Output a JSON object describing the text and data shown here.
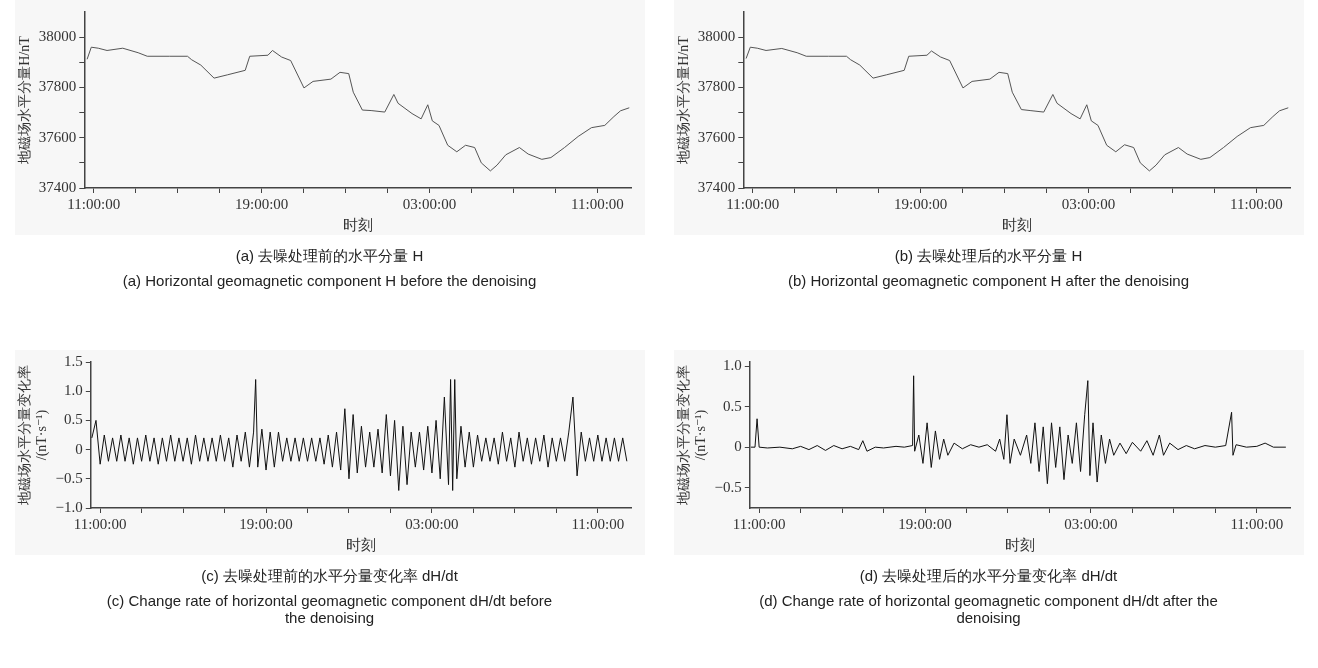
{
  "chart_data": [
    {
      "type": "line",
      "title": "(a) 去噪处理前的水平分量 H",
      "subtitle": "(a) Horizontal geomagnetic component H before the denoising",
      "xlabel": "时刻",
      "ylabel": "地磁场水平分量H/nT",
      "x": [
        "--01-01T10:41",
        "--01-01T10:53",
        "--01-01T11:13",
        "--01-01T11:38",
        "--01-01T12:23",
        "--01-01T13:07",
        "--01-01T13:33",
        "--01-01T14:37",
        "--01-01T15:28",
        "--01-01T15:40",
        "--01-01T16:06",
        "--01-01T16:44",
        "--01-01T17:22",
        "--01-01T18:13",
        "--01-01T18:26",
        "--01-01T19:18",
        "--01-01T19:31",
        "--01-01T19:57",
        "--01-01T20:23",
        "--01-01T21:01",
        "--01-01T21:27",
        "--01-01T22:18",
        "--01-01T22:44",
        "--01-01T23:09",
        "--01-01T23:22",
        "--01-01T23:48",
        "--01-02T00:13",
        "--01-02T00:52",
        "--01-02T01:18",
        "--01-02T01:30",
        "--01-02T02:10",
        "--01-02T02:36",
        "--01-02T02:55",
        "--01-02T03:08",
        "--01-02T03:27",
        "--01-02T03:52",
        "--01-02T04:18",
        "--01-02T04:43",
        "--01-02T05:09",
        "--01-02T05:28",
        "--01-02T05:54",
        "--01-02T06:13",
        "--01-02T06:38",
        "--01-02T07:17",
        "--01-02T07:42",
        "--01-02T08:21",
        "--01-02T08:47",
        "--01-02T09:26",
        "--01-02T10:05",
        "--01-02T10:43",
        "--01-02T11:21",
        "--01-02T11:47",
        "--01-02T12:06",
        "--01-02T12:31"
      ],
      "series": [
        {
          "color": "#555555",
          "values": [
            37912,
            37960,
            37956,
            37947,
            37956,
            37938,
            37924,
            37924,
            37924,
            37910,
            37889,
            37837,
            37850,
            37868,
            37924,
            37928,
            37947,
            37921,
            37907,
            37798,
            37824,
            37833,
            37860,
            37855,
            37781,
            37710,
            37708,
            37702,
            37772,
            37737,
            37696,
            37675,
            37731,
            37667,
            37649,
            37570,
            37544,
            37570,
            37561,
            37500,
            37468,
            37491,
            37532,
            37561,
            37535,
            37514,
            37521,
            37561,
            37605,
            37640,
            37649,
            37684,
            37707,
            37719
          ]
        }
      ],
      "xlim": [
        "--01-01T10:33",
        "--01-02T12:36"
      ],
      "ylim": [
        37400,
        38100
      ],
      "xticks": [
        {
          "value": "--01-01T11:00",
          "label": "11:00:00"
        },
        {
          "value": "--01-01T13:00",
          "label": null
        },
        {
          "value": "--01-01T15:00",
          "label": null
        },
        {
          "value": "--01-01T17:00",
          "label": null
        },
        {
          "value": "--01-01T19:00",
          "label": "19:00:00"
        },
        {
          "value": "--01-01T21:00",
          "label": null
        },
        {
          "value": "--01-01T23:00",
          "label": null
        },
        {
          "value": "--01-02T01:00",
          "label": null
        },
        {
          "value": "--01-02T03:00",
          "label": "03:00:00"
        },
        {
          "value": "--01-02T05:00",
          "label": null
        },
        {
          "value": "--01-02T07:00",
          "label": null
        },
        {
          "value": "--01-02T09:00",
          "label": null
        },
        {
          "value": "--01-02T11:00",
          "label": "11:00:00"
        }
      ],
      "yticks": [
        37400,
        {
          "value": 37500,
          "label": null
        },
        37600,
        {
          "value": 37700,
          "label": null
        },
        37800,
        {
          "value": 37900,
          "label": null
        },
        38000
      ]
    },
    {
      "type": "line",
      "title": "(b) 去噪处理后的水平分量 H",
      "subtitle": "(b) Horizontal geomagnetic component H after the denoising",
      "xlabel": "时刻",
      "ylabel": "地磁场水平分量H/nT",
      "x": [
        "--01-01T10:41",
        "--01-01T10:53",
        "--01-01T11:13",
        "--01-01T11:38",
        "--01-01T12:23",
        "--01-01T13:07",
        "--01-01T13:33",
        "--01-01T14:37",
        "--01-01T15:28",
        "--01-01T15:40",
        "--01-01T16:06",
        "--01-01T16:44",
        "--01-01T17:22",
        "--01-01T18:13",
        "--01-01T18:26",
        "--01-01T19:18",
        "--01-01T19:31",
        "--01-01T19:57",
        "--01-01T20:23",
        "--01-01T21:01",
        "--01-01T21:27",
        "--01-01T22:18",
        "--01-01T22:44",
        "--01-01T23:09",
        "--01-01T23:22",
        "--01-01T23:48",
        "--01-02T00:13",
        "--01-02T00:52",
        "--01-02T01:18",
        "--01-02T01:30",
        "--01-02T02:10",
        "--01-02T02:36",
        "--01-02T02:55",
        "--01-02T03:08",
        "--01-02T03:27",
        "--01-02T03:52",
        "--01-02T04:18",
        "--01-02T04:43",
        "--01-02T05:09",
        "--01-02T05:28",
        "--01-02T05:54",
        "--01-02T06:13",
        "--01-02T06:38",
        "--01-02T07:17",
        "--01-02T07:42",
        "--01-02T08:21",
        "--01-02T08:47",
        "--01-02T09:26",
        "--01-02T10:05",
        "--01-02T10:43",
        "--01-02T11:21",
        "--01-02T11:47",
        "--01-02T12:06",
        "--01-02T12:31"
      ],
      "series": [
        {
          "color": "#555555",
          "values": [
            37915,
            37960,
            37956,
            37947,
            37955,
            37938,
            37924,
            37924,
            37924,
            37910,
            37889,
            37837,
            37850,
            37868,
            37924,
            37928,
            37945,
            37921,
            37907,
            37798,
            37824,
            37833,
            37860,
            37855,
            37781,
            37712,
            37708,
            37702,
            37772,
            37737,
            37696,
            37675,
            37731,
            37667,
            37649,
            37570,
            37544,
            37572,
            37561,
            37500,
            37468,
            37491,
            37532,
            37561,
            37535,
            37514,
            37521,
            37561,
            37605,
            37640,
            37649,
            37684,
            37707,
            37719
          ]
        }
      ],
      "xlim": [
        "--01-01T10:33",
        "--01-02T12:36"
      ],
      "ylim": [
        37400,
        38100
      ],
      "xticks": [
        {
          "value": "--01-01T11:00",
          "label": "11:00:00"
        },
        {
          "value": "--01-01T13:00",
          "label": null
        },
        {
          "value": "--01-01T15:00",
          "label": null
        },
        {
          "value": "--01-01T17:00",
          "label": null
        },
        {
          "value": "--01-01T19:00",
          "label": "19:00:00"
        },
        {
          "value": "--01-01T21:00",
          "label": null
        },
        {
          "value": "--01-01T23:00",
          "label": null
        },
        {
          "value": "--01-02T01:00",
          "label": null
        },
        {
          "value": "--01-02T03:00",
          "label": "03:00:00"
        },
        {
          "value": "--01-02T05:00",
          "label": null
        },
        {
          "value": "--01-02T07:00",
          "label": null
        },
        {
          "value": "--01-02T09:00",
          "label": null
        },
        {
          "value": "--01-02T11:00",
          "label": "11:00:00"
        }
      ],
      "yticks": [
        37400,
        {
          "value": 37500,
          "label": null
        },
        37600,
        {
          "value": 37700,
          "label": null
        },
        37800,
        {
          "value": 37900,
          "label": null
        },
        38000
      ]
    },
    {
      "type": "line",
      "title": "(c) 去噪处理前的水平分量变化率 dH/dt",
      "subtitle": "(c) Change rate of horizontal geomagnetic component dH/dt before the denoising",
      "xlabel": "时刻",
      "ylabel": "地磁场水平分量变化率/(nT·s⁻¹)",
      "x": [
        "--01-01T10:36",
        "--01-01T10:48",
        "--01-01T11:00",
        "--01-01T11:12",
        "--01-01T11:24",
        "--01-01T11:36",
        "--01-01T11:48",
        "--01-01T12:00",
        "--01-01T12:12",
        "--01-01T12:24",
        "--01-01T12:36",
        "--01-01T12:48",
        "--01-01T13:00",
        "--01-01T13:12",
        "--01-01T13:24",
        "--01-01T13:36",
        "--01-01T13:48",
        "--01-01T14:00",
        "--01-01T14:12",
        "--01-01T14:24",
        "--01-01T14:36",
        "--01-01T14:48",
        "--01-01T15:00",
        "--01-01T15:12",
        "--01-01T15:24",
        "--01-01T15:36",
        "--01-01T15:48",
        "--01-01T16:00",
        "--01-01T16:12",
        "--01-01T16:24",
        "--01-01T16:36",
        "--01-01T16:48",
        "--01-01T17:00",
        "--01-01T17:12",
        "--01-01T17:24",
        "--01-01T17:36",
        "--01-01T17:48",
        "--01-01T18:00",
        "--01-01T18:12",
        "--01-01T18:24",
        "--01-01T18:30",
        "--01-01T18:36",
        "--01-01T18:48",
        "--01-01T19:00",
        "--01-01T19:12",
        "--01-01T19:24",
        "--01-01T19:36",
        "--01-01T19:48",
        "--01-01T20:00",
        "--01-01T20:12",
        "--01-01T20:24",
        "--01-01T20:36",
        "--01-01T20:48",
        "--01-01T21:00",
        "--01-01T21:12",
        "--01-01T21:24",
        "--01-01T21:36",
        "--01-01T21:48",
        "--01-01T22:00",
        "--01-01T22:12",
        "--01-01T22:24",
        "--01-01T22:36",
        "--01-01T22:48",
        "--01-01T23:00",
        "--01-01T23:12",
        "--01-01T23:24",
        "--01-01T23:36",
        "--01-01T23:48",
        "--01-02T00:00",
        "--01-02T00:12",
        "--01-02T00:24",
        "--01-02T00:36",
        "--01-02T00:48",
        "--01-02T01:00",
        "--01-02T01:12",
        "--01-02T01:24",
        "--01-02T01:36",
        "--01-02T01:48",
        "--01-02T02:00",
        "--01-02T02:12",
        "--01-02T02:24",
        "--01-02T02:36",
        "--01-02T02:48",
        "--01-02T03:00",
        "--01-02T03:12",
        "--01-02T03:24",
        "--01-02T03:36",
        "--01-02T03:48",
        "--01-02T03:54",
        "--01-02T04:00",
        "--01-02T04:06",
        "--01-02T04:12",
        "--01-02T04:24",
        "--01-02T04:36",
        "--01-02T04:48",
        "--01-02T05:00",
        "--01-02T05:12",
        "--01-02T05:24",
        "--01-02T05:36",
        "--01-02T05:48",
        "--01-02T06:00",
        "--01-02T06:12",
        "--01-02T06:24",
        "--01-02T06:36",
        "--01-02T06:48",
        "--01-02T07:00",
        "--01-02T07:12",
        "--01-02T07:24",
        "--01-02T07:36",
        "--01-02T07:48",
        "--01-02T08:00",
        "--01-02T08:12",
        "--01-02T08:24",
        "--01-02T08:36",
        "--01-02T08:48",
        "--01-02T09:00",
        "--01-02T09:12",
        "--01-02T09:24",
        "--01-02T09:36",
        "--01-02T09:48",
        "--01-02T10:00",
        "--01-02T10:12",
        "--01-02T10:24",
        "--01-02T10:36",
        "--01-02T10:48",
        "--01-02T11:00",
        "--01-02T11:12",
        "--01-02T11:24",
        "--01-02T11:36",
        "--01-02T11:48",
        "--01-02T12:00",
        "--01-02T12:12",
        "--01-02T12:24"
      ],
      "series": [
        {
          "color": "#111111",
          "values": [
            0.2,
            0.5,
            -0.25,
            0.25,
            -0.2,
            0.2,
            -0.2,
            0.25,
            -0.2,
            0.2,
            -0.25,
            0.2,
            -0.2,
            0.25,
            -0.2,
            0.2,
            -0.25,
            0.2,
            -0.2,
            0.25,
            -0.2,
            0.2,
            -0.2,
            0.2,
            -0.25,
            0.25,
            -0.2,
            0.2,
            -0.2,
            0.2,
            -0.2,
            0.25,
            -0.2,
            0.2,
            -0.3,
            0.25,
            -0.2,
            0.3,
            -0.3,
            0.3,
            1.2,
            -0.3,
            0.35,
            -0.35,
            0.3,
            -0.3,
            0.3,
            -0.2,
            0.2,
            -0.2,
            0.2,
            -0.2,
            0.2,
            -0.2,
            0.2,
            -0.2,
            0.2,
            -0.25,
            0.25,
            -0.3,
            0.3,
            -0.35,
            0.7,
            -0.5,
            0.6,
            -0.4,
            0.4,
            -0.3,
            0.3,
            -0.3,
            0.35,
            -0.4,
            0.6,
            -0.45,
            0.5,
            -0.7,
            0.4,
            -0.6,
            0.3,
            -0.3,
            0.3,
            -0.35,
            0.4,
            -0.4,
            0.5,
            -0.5,
            0.9,
            -0.6,
            1.2,
            -0.7,
            1.2,
            -0.5,
            0.4,
            -0.3,
            0.3,
            -0.3,
            0.25,
            -0.2,
            0.2,
            -0.2,
            0.2,
            -0.25,
            0.3,
            -0.2,
            0.2,
            -0.3,
            0.3,
            -0.2,
            0.2,
            -0.25,
            0.2,
            -0.2,
            0.25,
            -0.3,
            0.2,
            -0.2,
            0.2,
            -0.2,
            0.3,
            0.9,
            -0.45,
            0.3,
            -0.2,
            0.2,
            -0.2,
            0.25,
            -0.2,
            0.2,
            -0.2,
            0.2,
            -0.2,
            0.2,
            -0.2
          ]
        }
      ],
      "xlim": [
        "--01-01T10:33",
        "--01-02T12:36"
      ],
      "ylim": [
        -1,
        1.5
      ],
      "xticks": [
        {
          "value": "--01-01T11:00",
          "label": "11:00:00"
        },
        {
          "value": "--01-01T13:00",
          "label": null
        },
        {
          "value": "--01-01T15:00",
          "label": null
        },
        {
          "value": "--01-01T17:00",
          "label": null
        },
        {
          "value": "--01-01T19:00",
          "label": "19:00:00"
        },
        {
          "value": "--01-01T21:00",
          "label": null
        },
        {
          "value": "--01-01T23:00",
          "label": null
        },
        {
          "value": "--01-02T01:00",
          "label": null
        },
        {
          "value": "--01-02T03:00",
          "label": "03:00:00"
        },
        {
          "value": "--01-02T05:00",
          "label": null
        },
        {
          "value": "--01-02T07:00",
          "label": null
        },
        {
          "value": "--01-02T09:00",
          "label": null
        },
        {
          "value": "--01-02T11:00",
          "label": "11:00:00"
        }
      ],
      "yticks": [
        {
          "value": -1,
          "label": "−1.0"
        },
        {
          "value": -0.5,
          "label": "−0.5"
        },
        0,
        0.5,
        {
          "value": 1,
          "label": "1.0"
        },
        1.5
      ]
    },
    {
      "type": "line",
      "title": "(d) 去噪处理后的水平分量变化率 dH/dt",
      "subtitle": "(d) Change rate of horizontal geomagnetic component dH/dt after the denoising",
      "xlabel": "时刻",
      "ylabel": "地磁场水平分量变化率/(nT·s⁻¹)",
      "x": [
        "--01-01T10:36",
        "--01-01T10:48",
        "--01-01T10:54",
        "--01-01T11:00",
        "--01-01T11:24",
        "--01-01T12:00",
        "--01-01T12:36",
        "--01-01T13:00",
        "--01-01T13:24",
        "--01-01T13:48",
        "--01-01T14:12",
        "--01-01T14:36",
        "--01-01T15:00",
        "--01-01T15:24",
        "--01-01T15:48",
        "--01-01T16:00",
        "--01-01T16:12",
        "--01-01T16:36",
        "--01-01T17:00",
        "--01-01T17:36",
        "--01-01T18:00",
        "--01-01T18:24",
        "--01-01T18:27",
        "--01-01T18:30",
        "--01-01T18:42",
        "--01-01T18:54",
        "--01-01T19:06",
        "--01-01T19:18",
        "--01-01T19:30",
        "--01-01T19:42",
        "--01-01T19:54",
        "--01-01T20:06",
        "--01-01T20:24",
        "--01-01T20:48",
        "--01-01T21:12",
        "--01-01T21:36",
        "--01-01T22:00",
        "--01-01T22:24",
        "--01-01T22:36",
        "--01-01T22:48",
        "--01-01T22:57",
        "--01-01T23:06",
        "--01-01T23:18",
        "--01-01T23:36",
        "--01-01T23:54",
        "--01-02T00:06",
        "--01-02T00:18",
        "--01-02T00:30",
        "--01-02T00:42",
        "--01-02T00:54",
        "--01-02T01:06",
        "--01-02T01:18",
        "--01-02T01:30",
        "--01-02T01:42",
        "--01-02T01:54",
        "--01-02T02:06",
        "--01-02T02:18",
        "--01-02T02:30",
        "--01-02T02:42",
        "--01-02T02:51",
        "--01-02T02:57",
        "--01-02T03:06",
        "--01-02T03:18",
        "--01-02T03:30",
        "--01-02T03:42",
        "--01-02T03:54",
        "--01-02T04:06",
        "--01-02T04:24",
        "--01-02T04:42",
        "--01-02T05:00",
        "--01-02T05:24",
        "--01-02T05:42",
        "--01-02T06:00",
        "--01-02T06:18",
        "--01-02T06:30",
        "--01-02T06:48",
        "--01-02T07:12",
        "--01-02T07:36",
        "--01-02T08:00",
        "--01-02T08:30",
        "--01-02T09:00",
        "--01-02T09:30",
        "--01-02T09:47",
        "--01-02T09:51",
        "--01-02T10:00",
        "--01-02T10:30",
        "--01-02T11:00",
        "--01-02T11:24",
        "--01-02T11:48",
        "--01-02T12:24"
      ],
      "series": [
        {
          "color": "#111111",
          "values": [
            0,
            0,
            0.35,
            0,
            -0.01,
            0,
            -0.02,
            0.01,
            -0.03,
            0.02,
            -0.04,
            0.02,
            -0.02,
            0.01,
            -0.03,
            0.08,
            -0.05,
            0,
            -0.01,
            0.01,
            0,
            0.02,
            0.88,
            -0.05,
            0.15,
            -0.2,
            0.3,
            -0.25,
            0.2,
            -0.15,
            0.1,
            -0.1,
            0.05,
            -0.02,
            0.03,
            0,
            0.03,
            -0.05,
            0.1,
            -0.15,
            0.4,
            -0.2,
            0.1,
            -0.1,
            0.15,
            -0.2,
            0.3,
            -0.3,
            0.25,
            -0.45,
            0.3,
            -0.25,
            0.25,
            -0.4,
            0.15,
            -0.2,
            0.3,
            -0.3,
            0.4,
            0.82,
            -0.35,
            0.3,
            -0.43,
            0.15,
            -0.2,
            0.1,
            -0.1,
            0.05,
            -0.08,
            0.06,
            -0.05,
            0.08,
            -0.1,
            0.15,
            -0.1,
            0.05,
            -0.03,
            0.02,
            -0.02,
            0.02,
            0,
            0.02,
            0.43,
            -0.1,
            0.03,
            0,
            0.01,
            0.05,
            0,
            0
          ]
        }
      ],
      "xlim": [
        "--01-01T10:33",
        "--01-02T12:36"
      ],
      "ylim": [
        -0.75,
        1.05
      ],
      "xticks": [
        {
          "value": "--01-01T11:00",
          "label": "11:00:00"
        },
        {
          "value": "--01-01T13:00",
          "label": null
        },
        {
          "value": "--01-01T15:00",
          "label": null
        },
        {
          "value": "--01-01T17:00",
          "label": null
        },
        {
          "value": "--01-01T19:00",
          "label": "19:00:00"
        },
        {
          "value": "--01-01T21:00",
          "label": null
        },
        {
          "value": "--01-01T23:00",
          "label": null
        },
        {
          "value": "--01-02T01:00",
          "label": null
        },
        {
          "value": "--01-02T03:00",
          "label": "03:00:00"
        },
        {
          "value": "--01-02T05:00",
          "label": null
        },
        {
          "value": "--01-02T07:00",
          "label": null
        },
        {
          "value": "--01-02T09:00",
          "label": null
        },
        {
          "value": "--01-02T11:00",
          "label": "11:00:00"
        }
      ],
      "yticks": [
        {
          "value": -0.5,
          "label": "−0.5"
        },
        0,
        0.5,
        {
          "value": 1,
          "label": "1.0"
        }
      ]
    }
  ]
}
